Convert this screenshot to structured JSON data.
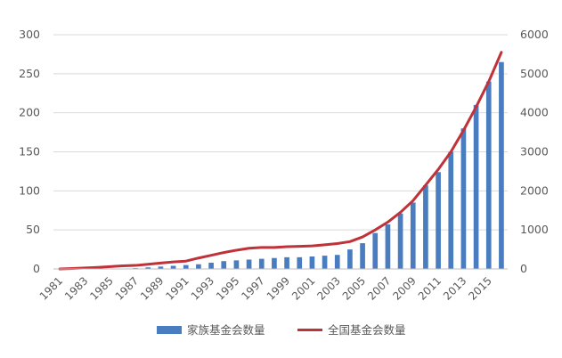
{
  "chart_data": {
    "type": "bar+line",
    "title": "",
    "categories": [
      "1981",
      "1982",
      "1983",
      "1984",
      "1985",
      "1986",
      "1987",
      "1988",
      "1989",
      "1990",
      "1991",
      "1992",
      "1993",
      "1994",
      "1995",
      "1996",
      "1997",
      "1998",
      "1999",
      "2000",
      "2001",
      "2002",
      "2003",
      "2004",
      "2005",
      "2006",
      "2007",
      "2008",
      "2009",
      "2010",
      "2011",
      "2012",
      "2013",
      "2014",
      "2015",
      "2016"
    ],
    "x_tick_labels": [
      "1981",
      "1983",
      "1985",
      "1987",
      "1989",
      "1991",
      "1993",
      "1995",
      "1997",
      "1999",
      "2001",
      "2003",
      "2005",
      "2007",
      "2009",
      "2011",
      "2013",
      "2015"
    ],
    "series": [
      {
        "name": "家族基金会数量",
        "type": "bar",
        "axis": "left",
        "color": "#4a7dbf",
        "values": [
          0,
          0,
          0,
          0,
          0,
          0,
          1,
          2,
          3,
          4,
          5,
          6,
          8,
          10,
          11,
          12,
          13,
          14,
          15,
          15,
          16,
          17,
          18,
          25,
          33,
          46,
          57,
          71,
          85,
          107,
          124,
          150,
          180,
          210,
          240,
          265
        ]
      },
      {
        "name": "全国基金会数量",
        "type": "line",
        "axis": "right",
        "color": "#c0323a",
        "values": [
          0,
          10,
          25,
          40,
          60,
          80,
          90,
          120,
          150,
          180,
          200,
          280,
          350,
          420,
          480,
          530,
          550,
          550,
          570,
          580,
          590,
          620,
          650,
          700,
          820,
          1000,
          1200,
          1450,
          1750,
          2150,
          2550,
          3000,
          3550,
          4150,
          4800,
          5550
        ]
      }
    ],
    "y_left": {
      "min": 0,
      "max": 300,
      "ticks": [
        0,
        50,
        100,
        150,
        200,
        250,
        300
      ]
    },
    "y_right": {
      "min": 0,
      "max": 6000,
      "ticks": [
        0,
        1000,
        2000,
        3000,
        4000,
        5000,
        6000
      ]
    },
    "legend_position": "bottom",
    "grid": true
  }
}
